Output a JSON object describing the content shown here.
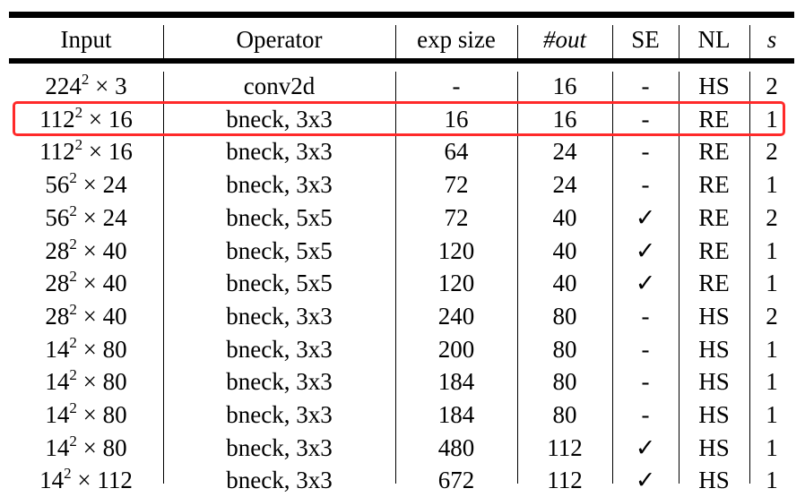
{
  "table": {
    "headers": [
      "Input",
      "Operator",
      "exp size",
      "#out",
      "SE",
      "NL",
      "s"
    ],
    "rows": [
      {
        "input_base": "224",
        "input_exp": "2",
        "input_rest": " × 3",
        "operator": "conv2d",
        "exp_size": "-",
        "out": "16",
        "se": "-",
        "nl": "HS",
        "s": "2"
      },
      {
        "input_base": "112",
        "input_exp": "2",
        "input_rest": " × 16",
        "operator": "bneck, 3x3",
        "exp_size": "16",
        "out": "16",
        "se": "-",
        "nl": "RE",
        "s": "1"
      },
      {
        "input_base": "112",
        "input_exp": "2",
        "input_rest": " × 16",
        "operator": "bneck, 3x3",
        "exp_size": "64",
        "out": "24",
        "se": "-",
        "nl": "RE",
        "s": "2"
      },
      {
        "input_base": "56",
        "input_exp": "2",
        "input_rest": " × 24",
        "operator": "bneck, 3x3",
        "exp_size": "72",
        "out": "24",
        "se": "-",
        "nl": "RE",
        "s": "1"
      },
      {
        "input_base": "56",
        "input_exp": "2",
        "input_rest": " × 24",
        "operator": "bneck, 5x5",
        "exp_size": "72",
        "out": "40",
        "se": "✓",
        "nl": "RE",
        "s": "2"
      },
      {
        "input_base": "28",
        "input_exp": "2",
        "input_rest": " × 40",
        "operator": "bneck, 5x5",
        "exp_size": "120",
        "out": "40",
        "se": "✓",
        "nl": "RE",
        "s": "1"
      },
      {
        "input_base": "28",
        "input_exp": "2",
        "input_rest": " × 40",
        "operator": "bneck, 5x5",
        "exp_size": "120",
        "out": "40",
        "se": "✓",
        "nl": "RE",
        "s": "1"
      },
      {
        "input_base": "28",
        "input_exp": "2",
        "input_rest": " × 40",
        "operator": "bneck, 3x3",
        "exp_size": "240",
        "out": "80",
        "se": "-",
        "nl": "HS",
        "s": "2"
      },
      {
        "input_base": "14",
        "input_exp": "2",
        "input_rest": " × 80",
        "operator": "bneck, 3x3",
        "exp_size": "200",
        "out": "80",
        "se": "-",
        "nl": "HS",
        "s": "1"
      },
      {
        "input_base": "14",
        "input_exp": "2",
        "input_rest": " × 80",
        "operator": "bneck, 3x3",
        "exp_size": "184",
        "out": "80",
        "se": "-",
        "nl": "HS",
        "s": "1"
      },
      {
        "input_base": "14",
        "input_exp": "2",
        "input_rest": " × 80",
        "operator": "bneck, 3x3",
        "exp_size": "184",
        "out": "80",
        "se": "-",
        "nl": "HS",
        "s": "1"
      },
      {
        "input_base": "14",
        "input_exp": "2",
        "input_rest": " × 80",
        "operator": "bneck, 3x3",
        "exp_size": "480",
        "out": "112",
        "se": "✓",
        "nl": "HS",
        "s": "1"
      },
      {
        "input_base": "14",
        "input_exp": "2",
        "input_rest": " × 112",
        "operator": "bneck, 3x3",
        "exp_size": "672",
        "out": "112",
        "se": "✓",
        "nl": "HS",
        "s": "1"
      }
    ],
    "highlight_color": "#ff2a2a"
  }
}
